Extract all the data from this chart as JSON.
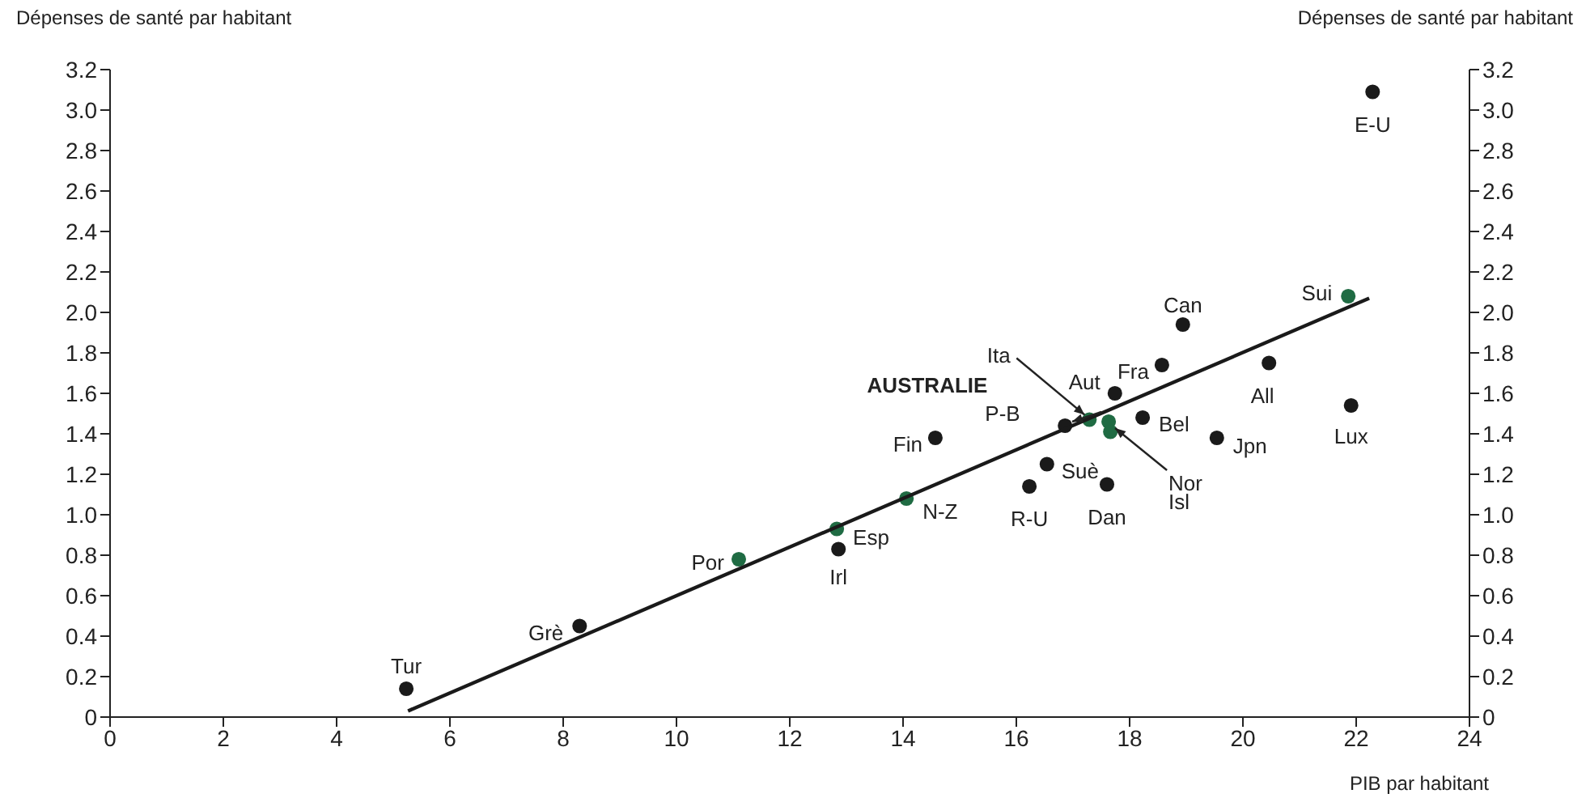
{
  "chart_data": {
    "type": "scatter",
    "ylabel": "Dépenses de santé par habitant",
    "y2label": "Dépenses de santé par habitant",
    "xlabel": "PIB par habitant",
    "series": [
      {
        "color": "#1a1a1a",
        "x": [
          5.23,
          8.29,
          12.86,
          14.57,
          16.23,
          16.54,
          17.6,
          16.86,
          17.74,
          18.23,
          18.57,
          18.94,
          19.54,
          20.46,
          21.91,
          22.29
        ],
        "values": [
          0.14,
          0.45,
          0.83,
          1.38,
          1.14,
          1.25,
          1.15,
          1.44,
          1.6,
          1.48,
          1.74,
          1.94,
          1.38,
          1.75,
          1.54,
          3.09
        ]
      },
      {
        "color": "#1f6b43",
        "x": [
          11.1,
          12.83,
          14.06,
          17.1,
          17.29,
          17.63,
          17.66,
          21.86
        ],
        "values": [
          0.78,
          0.93,
          1.08,
          null,
          1.47,
          1.46,
          1.41,
          2.08
        ]
      },
      {
        "type": "line",
        "marker": "none",
        "color": "#1a1a1a",
        "x": [
          5.26,
          22.23
        ],
        "values": [
          0.03,
          2.07
        ]
      }
    ],
    "marker": "circle",
    "xlim": [
      0,
      24
    ],
    "xticks": [
      0,
      2,
      4,
      6,
      8,
      10,
      12,
      14,
      16,
      18,
      20,
      22,
      24
    ],
    "ylim": [
      0,
      3.2
    ],
    "yticks": [
      0,
      0.2,
      0.4,
      0.6,
      0.8,
      {
        "value": 1,
        "label": "1.0"
      },
      1.2,
      1.4,
      1.6,
      1.8,
      {
        "value": 2,
        "label": "2.0"
      },
      2.2,
      2.4,
      2.6,
      2.8,
      {
        "value": 3,
        "label": "3.0"
      },
      3.2
    ],
    "y2lim": [
      0,
      3.2
    ],
    "y2ticks": [
      0,
      0.2,
      0.4,
      0.6,
      0.8,
      {
        "value": 1,
        "label": "1.0"
      },
      1.2,
      1.4,
      1.6,
      1.8,
      {
        "value": 2,
        "label": "2.0"
      },
      2.2,
      2.4,
      2.6,
      2.8,
      {
        "value": 3,
        "label": "3.0"
      },
      3.2
    ],
    "grid": false,
    "legend": false,
    "annotations": [
      {
        "text": "Tur",
        "x": 5.23,
        "y": 0.14
      },
      {
        "text": "Grè",
        "x": 8.29,
        "y": 0.45
      },
      {
        "text": "Por",
        "x": 11.1,
        "y": 0.78
      },
      {
        "text": "Esp",
        "x": 12.83,
        "y": 0.93
      },
      {
        "text": "Irl",
        "x": 12.86,
        "y": 0.83
      },
      {
        "text": "N-Z",
        "x": 14.06,
        "y": 1.08
      },
      {
        "text": "Fin",
        "x": 14.57,
        "y": 1.38
      },
      {
        "text": "R-U",
        "x": 16.23,
        "y": 1.14
      },
      {
        "text": "Suè",
        "x": 16.54,
        "y": 1.25
      },
      {
        "text": "Dan",
        "x": 17.6,
        "y": 1.15
      },
      "AUSTRALIE",
      {
        "text": "P-B",
        "x": 17.1,
        "y": 1.46
      },
      {
        "text": "Ita",
        "x": 17.29,
        "y": 1.47
      },
      {
        "text": "Aut",
        "x": 17.74,
        "y": 1.6
      },
      {
        "text": "Nor",
        "x": 17.63,
        "y": 1.46
      },
      "Isl",
      {
        "text": "Bel",
        "x": 18.23,
        "y": 1.48
      },
      {
        "text": "Fra",
        "x": 18.57,
        "y": 1.74
      },
      {
        "text": "Can",
        "x": 18.94,
        "y": 1.94
      },
      {
        "text": "Jpn",
        "x": 19.54,
        "y": 1.38
      },
      {
        "text": "All",
        "x": 20.46,
        "y": 1.75
      },
      {
        "text": "Sui",
        "x": 21.86,
        "y": 2.08
      },
      {
        "text": "Lux",
        "x": 21.91,
        "y": 1.54
      },
      {
        "text": "E-U",
        "x": 22.29,
        "y": 3.09
      }
    ]
  }
}
